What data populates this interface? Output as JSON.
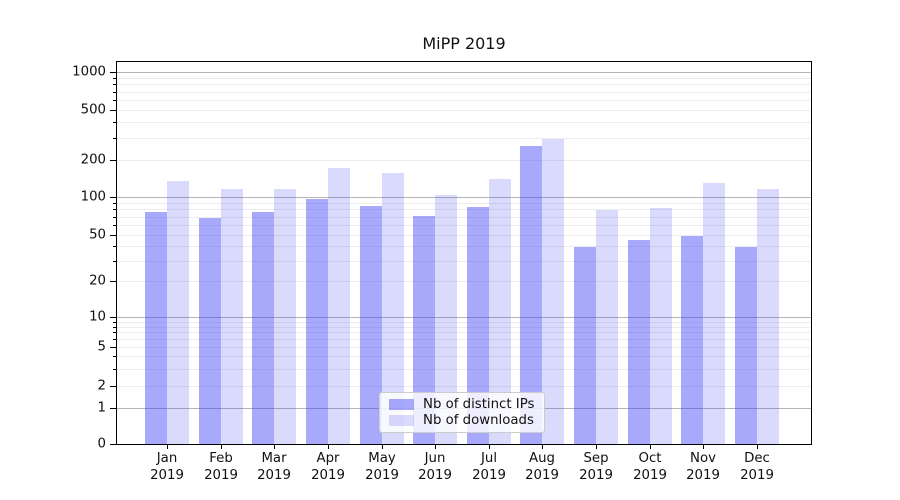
{
  "title": "MiPP 2019",
  "chart_data": {
    "type": "bar",
    "title": "MiPP 2019",
    "x_year": "2019",
    "months": [
      "Jan",
      "Feb",
      "Mar",
      "Apr",
      "May",
      "Jun",
      "Jul",
      "Aug",
      "Sep",
      "Oct",
      "Nov",
      "Dec"
    ],
    "series": [
      {
        "name": "Nb of distinct IPs",
        "color": "rgba(60,60,245,0.44)",
        "values": [
          76,
          68,
          76,
          97,
          85,
          71,
          83,
          258,
          39,
          45,
          49,
          39
        ]
      },
      {
        "name": "Nb of downloads",
        "color": "rgba(60,60,245,0.19)",
        "values": [
          134,
          116,
          117,
          172,
          158,
          103,
          139,
          293,
          79,
          82,
          130,
          117
        ]
      }
    ],
    "yaxis": {
      "scale": "symlog",
      "tick_values": [
        0,
        1,
        2,
        5,
        10,
        20,
        50,
        100,
        200,
        500,
        1000
      ],
      "tick_labels": [
        "0",
        "1",
        "2",
        "5",
        "10",
        "20",
        "50",
        "100",
        "200",
        "500",
        "1000"
      ],
      "top_value": 1200
    },
    "grid": {
      "on": true,
      "major_values": [
        1,
        10,
        100,
        1000
      ],
      "major_color": "#b5b5b5",
      "minor_color": "#ededed"
    },
    "legend": {
      "position": "lower center",
      "entries": [
        "Nb of distinct IPs",
        "Nb of downloads"
      ]
    },
    "colors": {
      "distinct_ips_rendered": "#a9a9fa",
      "downloads_rendered": "#dbdbfb",
      "frame": "#000000",
      "background": "#ffffff"
    }
  }
}
